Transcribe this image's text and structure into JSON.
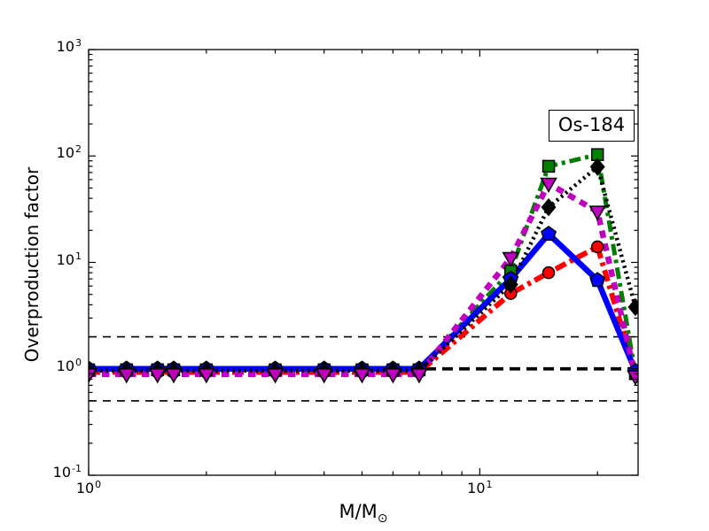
{
  "figure": {
    "background": "#ffffff",
    "ylabel": "Overproduction factor",
    "xlabel_main": "M/M",
    "xlabel_sub": "⊙",
    "annotation_label": "Os-184"
  },
  "chart_data": {
    "type": "line",
    "title": "",
    "xlabel": "M/M_sun",
    "ylabel": "Overproduction factor",
    "x_scale": "log",
    "y_scale": "log",
    "xlim": [
      1,
      25.4
    ],
    "ylim": [
      0.1,
      1000
    ],
    "grid": false,
    "legend": "none",
    "annotation": "Os-184",
    "tick_base": "10",
    "x_major_tick_exponents": [
      0,
      1
    ],
    "x_minor_ticks": [
      2,
      3,
      4,
      5,
      6,
      7,
      8,
      9,
      20
    ],
    "y_major_tick_exponents": [
      3,
      2,
      1,
      0,
      -1
    ],
    "axis_color": "#000000",
    "reference_lines": [
      {
        "y": 1.0,
        "style": "thick",
        "color": "#000000"
      },
      {
        "y": 2.0,
        "style": "thin",
        "color": "#000000"
      },
      {
        "y": 0.5,
        "style": "thin",
        "color": "#000000"
      }
    ],
    "x": [
      1,
      1.25,
      1.5,
      1.65,
      2,
      3,
      4,
      5,
      6,
      7,
      12,
      15,
      20,
      25
    ],
    "series": [
      {
        "name": "red-dashdot-circle",
        "color": "#ff0000",
        "linestyle": "dashdot",
        "linewidth": 6,
        "marker": "circle",
        "values": [
          0.93,
          0.93,
          0.93,
          0.93,
          0.93,
          0.93,
          0.93,
          0.93,
          0.93,
          0.93,
          5.1,
          8.0,
          14.0,
          0.93
        ]
      },
      {
        "name": "green-dashdot-square",
        "color": "#008000",
        "linestyle": "dashdot",
        "linewidth": 5,
        "marker": "square",
        "values": [
          0.98,
          0.98,
          0.98,
          0.98,
          0.98,
          0.98,
          0.98,
          0.98,
          0.98,
          0.98,
          8.3,
          80,
          103,
          0.9
        ]
      },
      {
        "name": "blue-solid-pentagon",
        "color": "#0000ff",
        "linestyle": "solid",
        "linewidth": 6.5,
        "marker": "pentagon",
        "values": [
          1.0,
          1.0,
          1.0,
          1.0,
          1.0,
          1.0,
          1.0,
          1.0,
          1.0,
          1.0,
          7.0,
          18.5,
          6.8,
          0.95
        ]
      },
      {
        "name": "magenta-dashed-triangle",
        "color": "#bf00bf",
        "linestyle": "dashed",
        "linewidth": 6.5,
        "marker": "triangle-down",
        "values": [
          0.89,
          0.89,
          0.89,
          0.89,
          0.89,
          0.89,
          0.89,
          0.89,
          0.89,
          0.89,
          11.0,
          55,
          30,
          0.85
        ]
      },
      {
        "name": "black-dotted-diamond",
        "color": "#000000",
        "linestyle": "dotted",
        "linewidth": 4.5,
        "marker": "diamond",
        "values": [
          0.96,
          0.96,
          0.96,
          0.96,
          0.96,
          0.96,
          0.96,
          0.96,
          0.96,
          0.96,
          6.2,
          33,
          79,
          3.8
        ]
      }
    ]
  }
}
